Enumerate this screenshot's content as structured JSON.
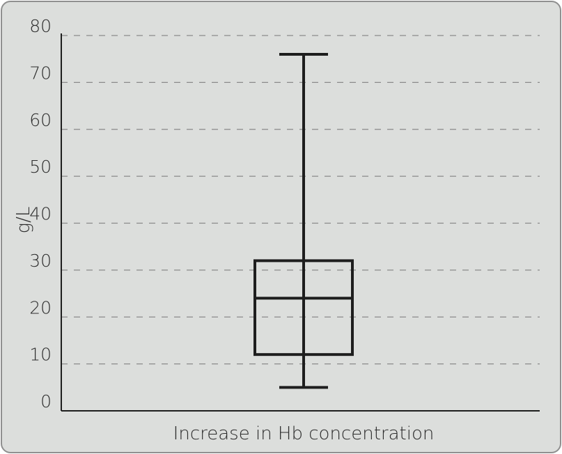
{
  "chart_data": {
    "type": "box",
    "title": "",
    "xlabel": "Increase in Hb concentration",
    "ylabel": "g/L",
    "ylim": [
      0,
      80
    ],
    "yticks": [
      0,
      10,
      20,
      30,
      40,
      50,
      60,
      70,
      80
    ],
    "ytick_labels": [
      "0",
      "10",
      "20",
      "30",
      "40",
      "50",
      "60",
      "70",
      "80"
    ],
    "grid": "horizontal dashed",
    "series": [
      {
        "min": 5,
        "q1": 12,
        "median": 24,
        "q3": 32,
        "max": 76
      }
    ],
    "colors": {
      "background": "#dcdedc",
      "box": "#1e1e1e",
      "grid": "#8a8a8a"
    }
  }
}
